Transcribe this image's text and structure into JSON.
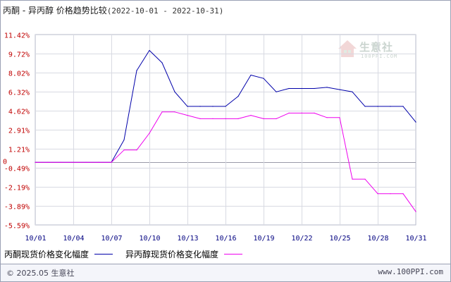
{
  "header": {
    "title": "丙酮 - 异丙醇 价格趋势比较",
    "range": "(2022-10-01 - 2022-10-31)"
  },
  "watermark": {
    "name": "生意社",
    "url": "100PPI.COM"
  },
  "footer": {
    "copyright": "© 2025.05 生意社",
    "site": "www.100PPI.com"
  },
  "chart_data": {
    "type": "line",
    "title": "丙酮 - 异丙醇 价格趋势比较",
    "subtitle": "(2022-10-01 - 2022-10-31)",
    "xlabel": "",
    "ylabel": "",
    "x": [
      "10/01",
      "10/02",
      "10/03",
      "10/04",
      "10/05",
      "10/06",
      "10/07",
      "10/08",
      "10/09",
      "10/10",
      "10/11",
      "10/12",
      "10/13",
      "10/14",
      "10/15",
      "10/16",
      "10/17",
      "10/18",
      "10/19",
      "10/20",
      "10/21",
      "10/22",
      "10/23",
      "10/24",
      "10/25",
      "10/26",
      "10/27",
      "10/28",
      "10/29",
      "10/30",
      "10/31"
    ],
    "x_tick_labels": [
      "10/01",
      "10/04",
      "10/07",
      "10/10",
      "10/13",
      "10/16",
      "10/19",
      "10/22",
      "10/25",
      "10/28",
      "10/31"
    ],
    "y_tick_labels": [
      "11.42%",
      "9.72%",
      "8.02%",
      "6.32%",
      "4.62%",
      "2.91%",
      "1.21%",
      "-0.49%",
      "-2.19%",
      "-3.89%",
      "-5.59%"
    ],
    "y_tick_values": [
      11.42,
      9.72,
      8.02,
      6.32,
      4.62,
      2.91,
      1.21,
      -0.49,
      -2.19,
      -3.89,
      -5.59
    ],
    "zero_label": "0",
    "ylim": [
      -5.59,
      11.42
    ],
    "grid": true,
    "legend_position": "bottom-left",
    "series": [
      {
        "name": "丙酮现货价格变化幅度",
        "color": "#0000aa",
        "values": [
          0,
          0,
          0,
          0,
          0,
          0,
          0,
          2.0,
          8.2,
          10.0,
          8.9,
          6.3,
          5.0,
          5.0,
          5.0,
          5.0,
          5.9,
          7.8,
          7.5,
          6.3,
          6.6,
          6.6,
          6.6,
          6.7,
          6.5,
          6.3,
          5.0,
          5.0,
          5.0,
          5.0,
          3.6
        ]
      },
      {
        "name": "异丙醇现货价格变化幅度",
        "color": "#ee00ee",
        "values": [
          0,
          0,
          0,
          0,
          0,
          0,
          0,
          1.1,
          1.1,
          2.6,
          4.5,
          4.5,
          4.2,
          3.9,
          3.9,
          3.9,
          3.9,
          4.2,
          3.9,
          3.9,
          4.4,
          4.4,
          4.4,
          4.0,
          4.0,
          -1.5,
          -1.5,
          -2.8,
          -2.8,
          -2.8,
          -4.4
        ]
      }
    ]
  }
}
